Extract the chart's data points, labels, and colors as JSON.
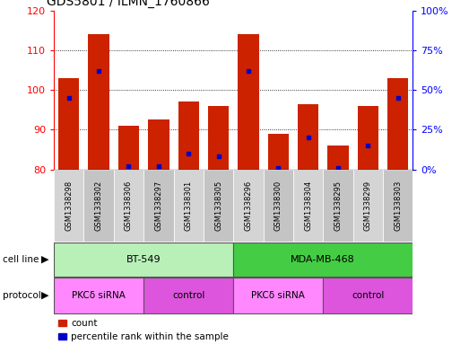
{
  "title": "GDS5801 / ILMN_1760866",
  "samples": [
    "GSM1338298",
    "GSM1338302",
    "GSM1338306",
    "GSM1338297",
    "GSM1338301",
    "GSM1338305",
    "GSM1338296",
    "GSM1338300",
    "GSM1338304",
    "GSM1338295",
    "GSM1338299",
    "GSM1338303"
  ],
  "red_values": [
    103.0,
    114.0,
    91.0,
    92.5,
    97.0,
    96.0,
    114.0,
    89.0,
    96.5,
    86.0,
    96.0,
    103.0
  ],
  "blue_pct": [
    45,
    62,
    2,
    2,
    10,
    8,
    62,
    1,
    20,
    1,
    15,
    45
  ],
  "ylim_left": [
    80,
    120
  ],
  "ylim_right": [
    0,
    100
  ],
  "yticks_left": [
    80,
    90,
    100,
    110,
    120
  ],
  "yticks_right": [
    0,
    25,
    50,
    75,
    100
  ],
  "ytick_labels_right": [
    "0%",
    "25%",
    "50%",
    "75%",
    "100%"
  ],
  "cell_line_groups": [
    {
      "label": "BT-549",
      "start": 0,
      "end": 5,
      "color": "#b8f0b8"
    },
    {
      "label": "MDA-MB-468",
      "start": 6,
      "end": 11,
      "color": "#44cc44"
    }
  ],
  "protocol_groups": [
    {
      "label": "PKCδ siRNA",
      "start": 0,
      "end": 2,
      "color": "#ff88ff"
    },
    {
      "label": "control",
      "start": 3,
      "end": 5,
      "color": "#dd55dd"
    },
    {
      "label": "PKCδ siRNA",
      "start": 6,
      "end": 8,
      "color": "#ff88ff"
    },
    {
      "label": "control",
      "start": 9,
      "end": 11,
      "color": "#dd55dd"
    }
  ],
  "bar_color": "#cc2200",
  "blue_color": "#0000cc",
  "sample_bg_even": "#d4d4d4",
  "sample_bg_odd": "#c4c4c4"
}
